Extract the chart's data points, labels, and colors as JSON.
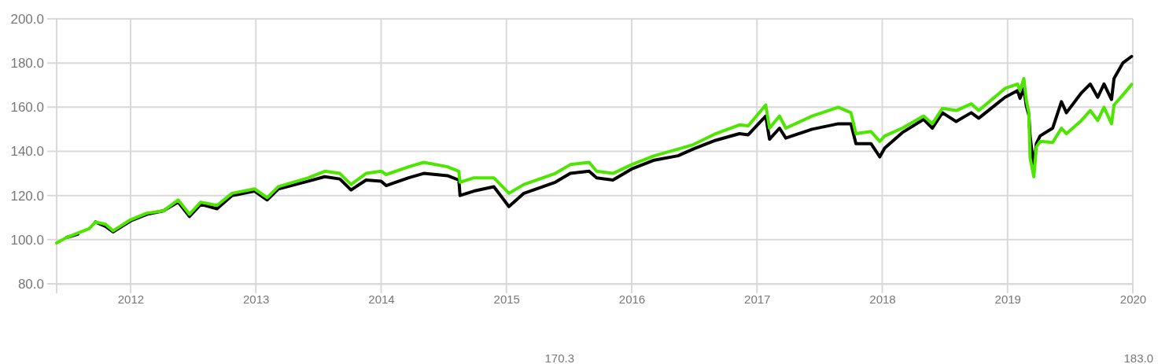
{
  "chart_data": {
    "type": "line",
    "xlim": [
      2011.41,
      2020
    ],
    "xticks": [
      2012,
      2013,
      2014,
      2015,
      2016,
      2017,
      2018,
      2019,
      2020
    ],
    "ylim": [
      80,
      200
    ],
    "yticks": [
      {
        "value": 80,
        "label": "80.0"
      },
      {
        "value": 100,
        "label": "100.0"
      },
      {
        "value": 120,
        "label": "120.0"
      },
      {
        "value": 140,
        "label": "140.0"
      },
      {
        "value": 160,
        "label": "160.0"
      },
      {
        "value": 180,
        "label": "180.0"
      },
      {
        "value": 200,
        "label": "200.0"
      }
    ],
    "grid": true,
    "line_style": "solid",
    "marker": "none",
    "annotations": [
      "170.3",
      "183.0"
    ],
    "x": [
      2011.41,
      2011.49,
      2011.58,
      2011.67,
      2011.72,
      2011.8,
      2011.86,
      2012,
      2012.13,
      2012.26,
      2012.38,
      2012.47,
      2012.56,
      2012.69,
      2012.81,
      2012.99,
      2013.09,
      2013.18,
      2013.42,
      2013.55,
      2013.67,
      2013.76,
      2013.88,
      2014,
      2014.04,
      2014.22,
      2014.34,
      2014.53,
      2014.62,
      2014.63,
      2014.74,
      2014.9,
      2015.02,
      2015.14,
      2015.39,
      2015.51,
      2015.66,
      2015.72,
      2015.85,
      2016,
      2016.18,
      2016.37,
      2016.49,
      2016.67,
      2016.86,
      2016.93,
      2017.07,
      2017.1,
      2017.18,
      2017.23,
      2017.44,
      2017.65,
      2017.75,
      2017.79,
      2017.91,
      2017.98,
      2018.02,
      2018.16,
      2018.33,
      2018.4,
      2018.48,
      2018.59,
      2018.71,
      2018.77,
      2018.98,
      2019.08,
      2019.1,
      2019.13,
      2019.15,
      2019.17,
      2019.18,
      2019.21,
      2019.23,
      2019.26,
      2019.36,
      2019.43,
      2019.47,
      2019.59,
      2019.66,
      2019.72,
      2019.77,
      2019.83,
      2019.85,
      2019.92,
      2019.99
    ],
    "series": [
      {
        "color": "#4de600",
        "values": [
          98.5,
          101,
          103,
          105,
          108,
          107,
          104,
          109,
          112,
          113,
          118,
          111.5,
          117,
          115.5,
          121,
          123,
          119,
          124,
          128,
          131,
          130,
          125,
          130,
          131,
          129.5,
          133,
          135,
          133,
          131,
          126,
          128,
          128,
          121,
          125,
          130,
          134,
          135,
          131,
          130,
          134,
          138,
          141,
          143,
          148,
          152,
          151.6,
          161,
          150.5,
          156,
          150.5,
          156,
          160,
          157.5,
          148,
          149,
          144.5,
          147,
          150.5,
          156,
          152.5,
          159.5,
          158.5,
          161.5,
          158.5,
          168.5,
          170.5,
          167.5,
          173,
          163,
          157.5,
          137,
          128.5,
          142,
          144.5,
          144,
          150.5,
          148,
          154,
          158.5,
          154,
          160,
          152.5,
          161,
          165.5,
          170.3
        ]
      },
      {
        "color": "#000000",
        "values": [
          null,
          101,
          102.5,
          null,
          108,
          106,
          103.5,
          108.5,
          111.5,
          113,
          117,
          110.5,
          116,
          114,
          120,
          122,
          118,
          123,
          126.5,
          128.5,
          127.5,
          122.5,
          127,
          126.5,
          124.5,
          128,
          130,
          129,
          127,
          120,
          122,
          124,
          115,
          121,
          126,
          130,
          131,
          128,
          127,
          132,
          136,
          138,
          141,
          145,
          148,
          147.5,
          156,
          145.5,
          150.5,
          146,
          150,
          152.5,
          152.5,
          143.5,
          143.5,
          137.5,
          141.5,
          148.5,
          154.5,
          150.5,
          157.5,
          153.5,
          157.5,
          155,
          164.5,
          167.5,
          164,
          168.5,
          160.5,
          156.5,
          147,
          132.5,
          143.5,
          147,
          150.5,
          162.5,
          157.5,
          166.5,
          170.5,
          164.5,
          170.5,
          163.5,
          173,
          180,
          183
        ]
      }
    ]
  }
}
